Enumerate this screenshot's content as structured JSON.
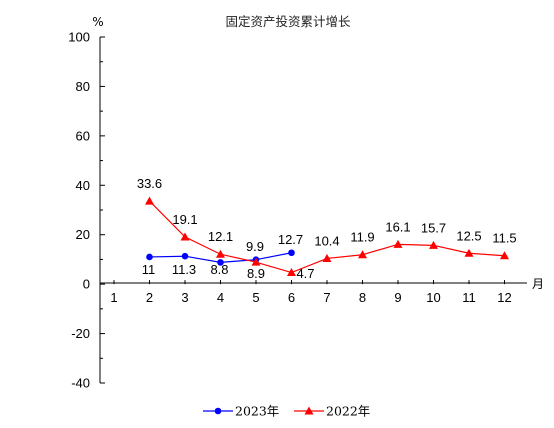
{
  "chart_data": {
    "type": "line",
    "title": "固定资产投资累计增长",
    "ylabel": "%",
    "xlabel": "月",
    "ylim": [
      -40,
      100
    ],
    "yticks": [
      -40,
      -20,
      0,
      20,
      40,
      60,
      80,
      100
    ],
    "categories": [
      "1",
      "2",
      "3",
      "4",
      "5",
      "6",
      "7",
      "8",
      "9",
      "10",
      "11",
      "12"
    ],
    "grid": false,
    "legend_position": "bottom",
    "series": [
      {
        "name": "2023年",
        "color": "#0000ff",
        "marker": "circle",
        "values": [
          null,
          11,
          11.3,
          8.8,
          9.9,
          12.7,
          null,
          null,
          null,
          null,
          null,
          null
        ],
        "labels": [
          null,
          "11",
          "11.3",
          "8.8",
          "9.9",
          "12.7",
          null,
          null,
          null,
          null,
          null,
          null
        ]
      },
      {
        "name": "2022年",
        "color": "#ff0000",
        "marker": "triangle",
        "values": [
          null,
          33.6,
          19.1,
          12.1,
          8.9,
          4.7,
          10.4,
          11.9,
          16.1,
          15.7,
          12.5,
          11.5
        ],
        "labels": [
          null,
          "33.6",
          "19.1",
          "12.1",
          "8.9",
          "4.7",
          "10.4",
          "11.9",
          "16.1",
          "15.7",
          "12.5",
          "11.5"
        ]
      }
    ]
  }
}
